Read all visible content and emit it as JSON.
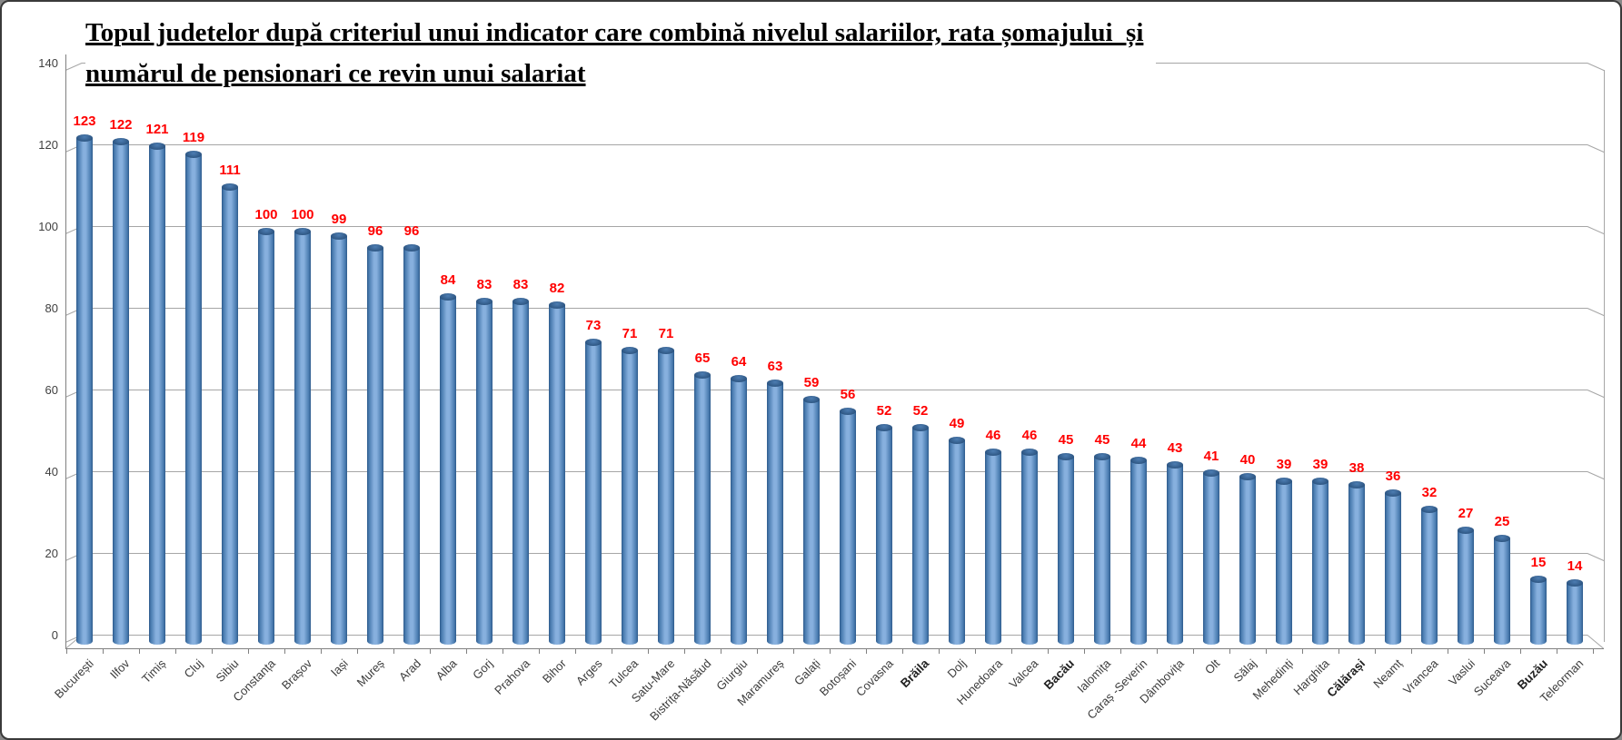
{
  "title": {
    "line1": "Topul judetelor după criteriul unui indicator care combină nivelul salariilor, rata șomajului  și",
    "line2": "numărul de pensionari ce revin unui salariat"
  },
  "y_axis": {
    "ticks": [
      0,
      20,
      40,
      60,
      80,
      100,
      120,
      140
    ]
  },
  "colors": {
    "bar_main": "#4F81BD",
    "bar_edge": "#2E5A8C",
    "bar_highlight": "#87B0DE",
    "value_label": "#FF0000",
    "gridline": "#A6A6A6",
    "axis": "#808080",
    "axis_text": "#3F3F3F"
  },
  "chart_data": {
    "type": "bar",
    "title": "Topul judetelor după criteriul unui indicator care combină nivelul salariilor, rata șomajului  și numărul de pensionari ce revin unui salariat",
    "xlabel": "",
    "ylabel": "",
    "ylim": [
      0,
      140
    ],
    "ytick_step": 20,
    "grid": true,
    "legend": "none",
    "style": "3d-cylinder",
    "categories": [
      "București",
      "Ilfov",
      "Timiș",
      "Cluj",
      "Sibiu",
      "Constanța",
      "Brașov",
      "Iași",
      "Mureș",
      "Arad",
      "Alba",
      "Gorj",
      "Prahova",
      "Bihor",
      "Arges",
      "Tulcea",
      "Satu-Mare",
      "Bistrița-Năsăud",
      "Giurgiu",
      "Maramureș",
      "Galați",
      "Botoșani",
      "Covasna",
      "Brăila",
      "Dolj",
      "Hunedoara",
      "Valcea",
      "Bacău",
      "Ialomița",
      "Caraș -Severin",
      "Dâmbovița",
      "Olt",
      "Sălaj",
      "Mehedinți",
      "Harghita",
      "Călărași",
      "Neamț",
      "Vrancea",
      "Vaslui",
      "Suceava",
      "Buzău",
      "Teleorman"
    ],
    "values": [
      123,
      122,
      121,
      119,
      111,
      100,
      100,
      99,
      96,
      96,
      84,
      83,
      83,
      82,
      73,
      71,
      71,
      65,
      64,
      63,
      59,
      56,
      52,
      52,
      49,
      46,
      46,
      45,
      45,
      44,
      43,
      41,
      40,
      39,
      39,
      38,
      36,
      32,
      27,
      25,
      15,
      14
    ],
    "bold_categories": [
      "Brăila",
      "Bacău",
      "Călărași",
      "Buzău"
    ]
  }
}
